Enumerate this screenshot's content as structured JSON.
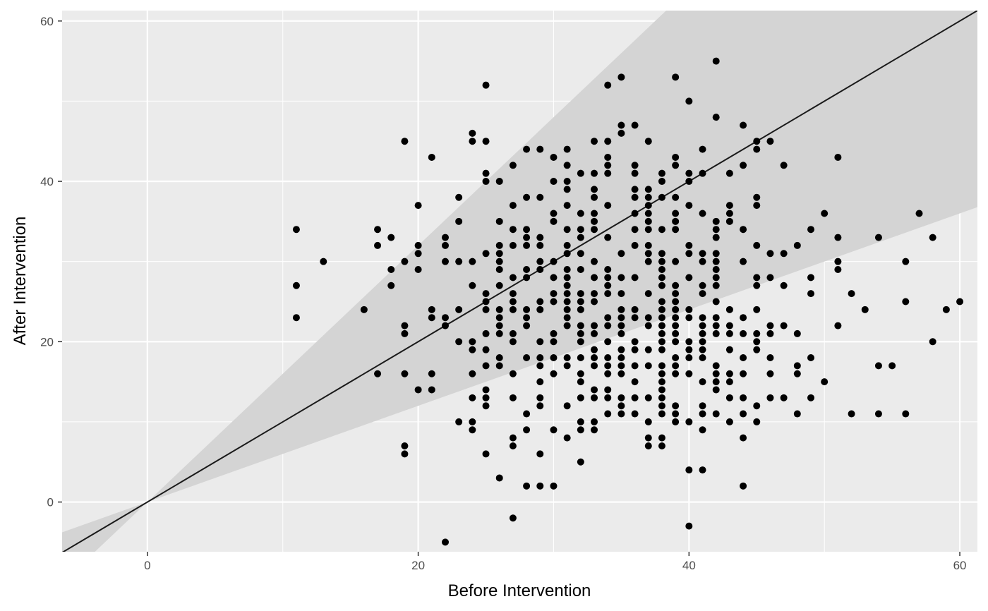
{
  "chart_data": {
    "type": "scatter",
    "xlabel": "Before Intervention",
    "ylabel": "After Intervention",
    "xlim": [
      -6.3,
      61.3
    ],
    "ylim": [
      -6.2,
      61.3
    ],
    "x_ticks": [
      0,
      20,
      40,
      60
    ],
    "y_ticks": [
      0,
      20,
      40,
      60
    ],
    "x_tick_labels": [
      "0",
      "20",
      "40",
      "60"
    ],
    "y_tick_labels": [
      "0",
      "20",
      "40",
      "60"
    ],
    "grid": true,
    "legend": "none",
    "reference_line": {
      "slope": 1,
      "intercept": 0
    },
    "band": {
      "lower_slope": 0.6,
      "upper_slope": 1.6
    },
    "colors": {
      "panel": "#ebebeb",
      "grid": "#ffffff",
      "band": "#d4d4d4",
      "points": "#000000",
      "line": "#1a1a1a"
    },
    "points": [
      [
        11,
        34
      ],
      [
        11,
        27
      ],
      [
        11,
        23
      ],
      [
        13,
        30
      ],
      [
        16,
        24
      ],
      [
        17,
        34
      ],
      [
        17,
        32
      ],
      [
        17,
        16
      ],
      [
        18,
        33
      ],
      [
        18,
        29
      ],
      [
        18,
        27
      ],
      [
        19,
        45
      ],
      [
        19,
        30
      ],
      [
        19,
        22
      ],
      [
        19,
        21
      ],
      [
        19,
        16
      ],
      [
        19,
        7
      ],
      [
        19,
        6
      ],
      [
        20,
        37
      ],
      [
        20,
        32
      ],
      [
        20,
        31
      ],
      [
        20,
        29
      ],
      [
        20,
        14
      ],
      [
        21,
        43
      ],
      [
        21,
        24
      ],
      [
        21,
        23
      ],
      [
        21,
        16
      ],
      [
        21,
        14
      ],
      [
        22,
        33
      ],
      [
        22,
        32
      ],
      [
        22,
        30
      ],
      [
        22,
        23
      ],
      [
        22,
        22
      ],
      [
        22,
        -5
      ],
      [
        23,
        38
      ],
      [
        23,
        35
      ],
      [
        23,
        30
      ],
      [
        23,
        24
      ],
      [
        23,
        20
      ],
      [
        23,
        10
      ],
      [
        24,
        46
      ],
      [
        24,
        45
      ],
      [
        24,
        30
      ],
      [
        24,
        27
      ],
      [
        24,
        20
      ],
      [
        24,
        19
      ],
      [
        24,
        16
      ],
      [
        24,
        13
      ],
      [
        24,
        10
      ],
      [
        24,
        9
      ],
      [
        25,
        52
      ],
      [
        25,
        45
      ],
      [
        25,
        41
      ],
      [
        25,
        40
      ],
      [
        25,
        31
      ],
      [
        25,
        26
      ],
      [
        25,
        25
      ],
      [
        25,
        24
      ],
      [
        25,
        21
      ],
      [
        25,
        19
      ],
      [
        25,
        17
      ],
      [
        25,
        14
      ],
      [
        25,
        13
      ],
      [
        25,
        12
      ],
      [
        25,
        6
      ],
      [
        26,
        40
      ],
      [
        26,
        35
      ],
      [
        26,
        32
      ],
      [
        26,
        31
      ],
      [
        26,
        30
      ],
      [
        26,
        29
      ],
      [
        26,
        27
      ],
      [
        26,
        24
      ],
      [
        26,
        23
      ],
      [
        26,
        22
      ],
      [
        26,
        21
      ],
      [
        26,
        18
      ],
      [
        26,
        17
      ],
      [
        26,
        3
      ],
      [
        27,
        42
      ],
      [
        27,
        37
      ],
      [
        27,
        34
      ],
      [
        27,
        32
      ],
      [
        27,
        28
      ],
      [
        27,
        26
      ],
      [
        27,
        25
      ],
      [
        27,
        24
      ],
      [
        27,
        21
      ],
      [
        27,
        20
      ],
      [
        27,
        16
      ],
      [
        27,
        13
      ],
      [
        27,
        8
      ],
      [
        27,
        7
      ],
      [
        27,
        -2
      ],
      [
        28,
        44
      ],
      [
        28,
        38
      ],
      [
        28,
        34
      ],
      [
        28,
        33
      ],
      [
        28,
        32
      ],
      [
        28,
        29
      ],
      [
        28,
        28
      ],
      [
        28,
        24
      ],
      [
        28,
        23
      ],
      [
        28,
        22
      ],
      [
        28,
        18
      ],
      [
        28,
        11
      ],
      [
        28,
        9
      ],
      [
        28,
        2
      ],
      [
        29,
        44
      ],
      [
        29,
        38
      ],
      [
        29,
        33
      ],
      [
        29,
        32
      ],
      [
        29,
        30
      ],
      [
        29,
        29
      ],
      [
        29,
        25
      ],
      [
        29,
        24
      ],
      [
        29,
        20
      ],
      [
        29,
        18
      ],
      [
        29,
        17
      ],
      [
        29,
        15
      ],
      [
        29,
        13
      ],
      [
        29,
        12
      ],
      [
        29,
        6
      ],
      [
        29,
        2
      ],
      [
        30,
        43
      ],
      [
        30,
        40
      ],
      [
        30,
        36
      ],
      [
        30,
        35
      ],
      [
        30,
        30
      ],
      [
        30,
        28
      ],
      [
        30,
        26
      ],
      [
        30,
        25
      ],
      [
        30,
        21
      ],
      [
        30,
        20
      ],
      [
        30,
        18
      ],
      [
        30,
        16
      ],
      [
        30,
        9
      ],
      [
        30,
        2
      ],
      [
        31,
        44
      ],
      [
        31,
        42
      ],
      [
        31,
        40
      ],
      [
        31,
        39
      ],
      [
        31,
        37
      ],
      [
        31,
        34
      ],
      [
        31,
        32
      ],
      [
        31,
        31
      ],
      [
        31,
        29
      ],
      [
        31,
        28
      ],
      [
        31,
        27
      ],
      [
        31,
        26
      ],
      [
        31,
        25
      ],
      [
        31,
        24
      ],
      [
        31,
        23
      ],
      [
        31,
        22
      ],
      [
        31,
        18
      ],
      [
        31,
        17
      ],
      [
        31,
        12
      ],
      [
        31,
        8
      ],
      [
        32,
        41
      ],
      [
        32,
        36
      ],
      [
        32,
        34
      ],
      [
        32,
        33
      ],
      [
        32,
        31
      ],
      [
        32,
        29
      ],
      [
        32,
        26
      ],
      [
        32,
        25
      ],
      [
        32,
        24
      ],
      [
        32,
        22
      ],
      [
        32,
        21
      ],
      [
        32,
        20
      ],
      [
        32,
        18
      ],
      [
        32,
        16
      ],
      [
        32,
        15
      ],
      [
        32,
        13
      ],
      [
        32,
        10
      ],
      [
        32,
        9
      ],
      [
        32,
        5
      ],
      [
        33,
        45
      ],
      [
        33,
        41
      ],
      [
        33,
        39
      ],
      [
        33,
        38
      ],
      [
        33,
        36
      ],
      [
        33,
        35
      ],
      [
        33,
        34
      ],
      [
        33,
        30
      ],
      [
        33,
        28
      ],
      [
        33,
        26
      ],
      [
        33,
        25
      ],
      [
        33,
        22
      ],
      [
        33,
        21
      ],
      [
        33,
        19
      ],
      [
        33,
        18
      ],
      [
        33,
        17
      ],
      [
        33,
        14
      ],
      [
        33,
        13
      ],
      [
        33,
        10
      ],
      [
        33,
        9
      ],
      [
        34,
        52
      ],
      [
        34,
        45
      ],
      [
        34,
        43
      ],
      [
        34,
        42
      ],
      [
        34,
        41
      ],
      [
        34,
        37
      ],
      [
        34,
        33
      ],
      [
        34,
        29
      ],
      [
        34,
        28
      ],
      [
        34,
        27
      ],
      [
        34,
        26
      ],
      [
        34,
        23
      ],
      [
        34,
        22
      ],
      [
        34,
        20
      ],
      [
        34,
        18
      ],
      [
        34,
        17
      ],
      [
        34,
        16
      ],
      [
        34,
        14
      ],
      [
        34,
        13
      ],
      [
        34,
        11
      ],
      [
        35,
        53
      ],
      [
        35,
        47
      ],
      [
        35,
        46
      ],
      [
        35,
        31
      ],
      [
        35,
        28
      ],
      [
        35,
        26
      ],
      [
        35,
        24
      ],
      [
        35,
        23
      ],
      [
        35,
        22
      ],
      [
        35,
        21
      ],
      [
        35,
        19
      ],
      [
        35,
        18
      ],
      [
        35,
        17
      ],
      [
        35,
        16
      ],
      [
        35,
        13
      ],
      [
        35,
        12
      ],
      [
        35,
        11
      ],
      [
        36,
        47
      ],
      [
        36,
        42
      ],
      [
        36,
        41
      ],
      [
        36,
        39
      ],
      [
        36,
        38
      ],
      [
        36,
        36
      ],
      [
        36,
        34
      ],
      [
        36,
        32
      ],
      [
        36,
        28
      ],
      [
        36,
        24
      ],
      [
        36,
        23
      ],
      [
        36,
        20
      ],
      [
        36,
        19
      ],
      [
        36,
        17
      ],
      [
        36,
        15
      ],
      [
        36,
        13
      ],
      [
        36,
        11
      ],
      [
        37,
        45
      ],
      [
        37,
        39
      ],
      [
        37,
        38
      ],
      [
        37,
        37
      ],
      [
        37,
        36
      ],
      [
        37,
        35
      ],
      [
        37,
        34
      ],
      [
        37,
        32
      ],
      [
        37,
        31
      ],
      [
        37,
        30
      ],
      [
        37,
        26
      ],
      [
        37,
        23
      ],
      [
        37,
        22
      ],
      [
        37,
        19
      ],
      [
        37,
        17
      ],
      [
        37,
        13
      ],
      [
        37,
        10
      ],
      [
        37,
        8
      ],
      [
        37,
        7
      ],
      [
        38,
        41
      ],
      [
        38,
        40
      ],
      [
        38,
        38
      ],
      [
        38,
        34
      ],
      [
        38,
        31
      ],
      [
        38,
        30
      ],
      [
        38,
        29
      ],
      [
        38,
        28
      ],
      [
        38,
        27
      ],
      [
        38,
        25
      ],
      [
        38,
        24
      ],
      [
        38,
        23
      ],
      [
        38,
        22
      ],
      [
        38,
        21
      ],
      [
        38,
        20
      ],
      [
        38,
        19
      ],
      [
        38,
        17
      ],
      [
        38,
        16
      ],
      [
        38,
        15
      ],
      [
        38,
        14
      ],
      [
        38,
        13
      ],
      [
        38,
        12
      ],
      [
        38,
        11
      ],
      [
        38,
        8
      ],
      [
        38,
        7
      ],
      [
        39,
        53
      ],
      [
        39,
        43
      ],
      [
        39,
        42
      ],
      [
        39,
        38
      ],
      [
        39,
        36
      ],
      [
        39,
        35
      ],
      [
        39,
        34
      ],
      [
        39,
        30
      ],
      [
        39,
        27
      ],
      [
        39,
        26
      ],
      [
        39,
        25
      ],
      [
        39,
        24
      ],
      [
        39,
        23
      ],
      [
        39,
        22
      ],
      [
        39,
        21
      ],
      [
        39,
        20
      ],
      [
        39,
        18
      ],
      [
        39,
        17
      ],
      [
        39,
        16
      ],
      [
        39,
        12
      ],
      [
        39,
        11
      ],
      [
        39,
        10
      ],
      [
        40,
        50
      ],
      [
        40,
        41
      ],
      [
        40,
        40
      ],
      [
        40,
        37
      ],
      [
        40,
        32
      ],
      [
        40,
        31
      ],
      [
        40,
        28
      ],
      [
        40,
        24
      ],
      [
        40,
        23
      ],
      [
        40,
        20
      ],
      [
        40,
        19
      ],
      [
        40,
        18
      ],
      [
        40,
        16
      ],
      [
        40,
        10
      ],
      [
        40,
        4
      ],
      [
        40,
        -3
      ],
      [
        41,
        44
      ],
      [
        41,
        41
      ],
      [
        41,
        36
      ],
      [
        41,
        31
      ],
      [
        41,
        30
      ],
      [
        41,
        27
      ],
      [
        41,
        26
      ],
      [
        41,
        23
      ],
      [
        41,
        22
      ],
      [
        41,
        21
      ],
      [
        41,
        20
      ],
      [
        41,
        19
      ],
      [
        41,
        18
      ],
      [
        41,
        15
      ],
      [
        41,
        12
      ],
      [
        41,
        11
      ],
      [
        41,
        9
      ],
      [
        41,
        4
      ],
      [
        42,
        55
      ],
      [
        42,
        48
      ],
      [
        42,
        35
      ],
      [
        42,
        34
      ],
      [
        42,
        33
      ],
      [
        42,
        31
      ],
      [
        42,
        30
      ],
      [
        42,
        29
      ],
      [
        42,
        28
      ],
      [
        42,
        27
      ],
      [
        42,
        25
      ],
      [
        42,
        23
      ],
      [
        42,
        22
      ],
      [
        42,
        21
      ],
      [
        42,
        17
      ],
      [
        42,
        16
      ],
      [
        42,
        15
      ],
      [
        42,
        14
      ],
      [
        42,
        11
      ],
      [
        43,
        41
      ],
      [
        43,
        37
      ],
      [
        43,
        36
      ],
      [
        43,
        35
      ],
      [
        43,
        24
      ],
      [
        43,
        22
      ],
      [
        43,
        21
      ],
      [
        43,
        19
      ],
      [
        43,
        16
      ],
      [
        43,
        15
      ],
      [
        43,
        13
      ],
      [
        43,
        10
      ],
      [
        44,
        47
      ],
      [
        44,
        42
      ],
      [
        44,
        34
      ],
      [
        44,
        30
      ],
      [
        44,
        23
      ],
      [
        44,
        21
      ],
      [
        44,
        18
      ],
      [
        44,
        16
      ],
      [
        44,
        13
      ],
      [
        44,
        11
      ],
      [
        44,
        8
      ],
      [
        44,
        2
      ],
      [
        45,
        45
      ],
      [
        45,
        44
      ],
      [
        45,
        38
      ],
      [
        45,
        37
      ],
      [
        45,
        32
      ],
      [
        45,
        28
      ],
      [
        45,
        27
      ],
      [
        45,
        24
      ],
      [
        45,
        21
      ],
      [
        45,
        20
      ],
      [
        45,
        19
      ],
      [
        45,
        12
      ],
      [
        45,
        10
      ],
      [
        46,
        45
      ],
      [
        46,
        31
      ],
      [
        46,
        28
      ],
      [
        46,
        22
      ],
      [
        46,
        21
      ],
      [
        46,
        18
      ],
      [
        46,
        16
      ],
      [
        46,
        13
      ],
      [
        47,
        42
      ],
      [
        47,
        31
      ],
      [
        47,
        27
      ],
      [
        47,
        22
      ],
      [
        47,
        13
      ],
      [
        48,
        32
      ],
      [
        48,
        21
      ],
      [
        48,
        17
      ],
      [
        48,
        16
      ],
      [
        48,
        11
      ],
      [
        49,
        34
      ],
      [
        49,
        28
      ],
      [
        49,
        26
      ],
      [
        49,
        18
      ],
      [
        49,
        13
      ],
      [
        50,
        36
      ],
      [
        50,
        15
      ],
      [
        51,
        43
      ],
      [
        51,
        33
      ],
      [
        51,
        30
      ],
      [
        51,
        29
      ],
      [
        51,
        22
      ],
      [
        52,
        26
      ],
      [
        52,
        11
      ],
      [
        53,
        24
      ],
      [
        54,
        33
      ],
      [
        54,
        17
      ],
      [
        54,
        11
      ],
      [
        55,
        17
      ],
      [
        56,
        30
      ],
      [
        56,
        25
      ],
      [
        56,
        11
      ],
      [
        57,
        36
      ],
      [
        58,
        33
      ],
      [
        58,
        20
      ],
      [
        59,
        24
      ],
      [
        60,
        25
      ]
    ]
  }
}
